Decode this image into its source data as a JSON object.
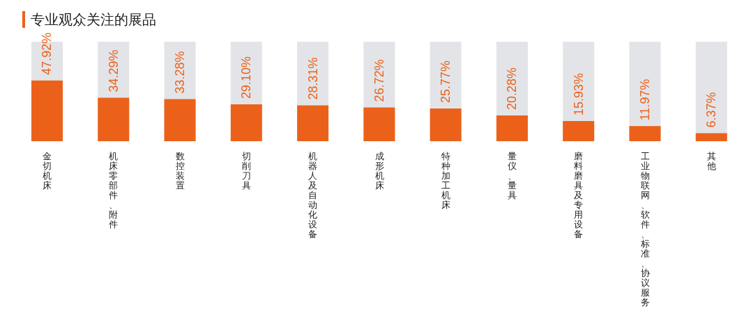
{
  "chart_data": {
    "type": "bar",
    "title": "专业观众关注的展品",
    "categories": [
      "金切机床",
      "机床零部件、附件",
      "数控装置",
      "切削刀具",
      "机器人及自动化设备",
      "成形机床",
      "特种加工机床",
      "量仪、量具",
      "磨料磨具及专用设备",
      "工业物联网、软件、标准、协议服务",
      "其他"
    ],
    "values": [
      47.92,
      34.29,
      33.28,
      29.1,
      28.31,
      26.72,
      25.77,
      20.28,
      15.93,
      11.97,
      6.37
    ],
    "value_labels": [
      "47.92%",
      "34.29%",
      "33.28%",
      "29.10%",
      "28.31%",
      "26.72%",
      "25.77%",
      "20.28%",
      "15.93%",
      "11.97%",
      "6.37%"
    ],
    "color": "#ec6119"
  }
}
